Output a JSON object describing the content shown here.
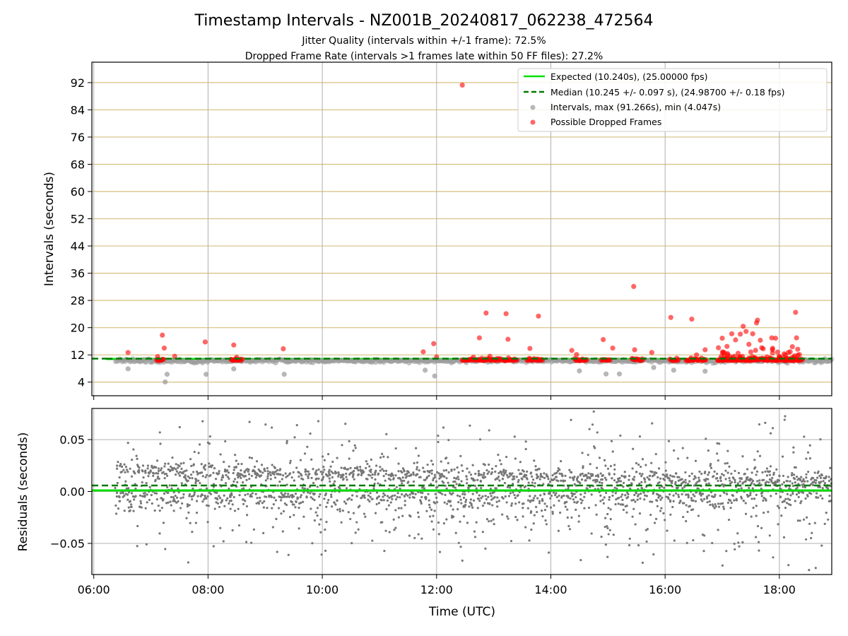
{
  "figure": {
    "title": "Timestamp Intervals - NZ001B_20240817_062238_472564",
    "subtitle_jitter": "Jitter Quality (intervals within +/-1 frame): 72.5%",
    "subtitle_dropped": "Dropped Frame Rate (intervals >1 frames late within 50 FF files): 27.2%"
  },
  "colors": {
    "expected_line": "#00e000",
    "median_line": "#007a00",
    "intervals": "#999999",
    "dropped": "#ff0000",
    "residuals": "#777777",
    "hgrid_top": "#d7bf7f",
    "grid": "#b0b0b0"
  },
  "chart_data": [
    {
      "type": "scatter",
      "panel": "intervals",
      "ylabel": "Intervals (seconds)",
      "x_axis": "time (UTC)",
      "xlim": [
        "05:58",
        "18:55"
      ],
      "ylim": [
        0,
        98
      ],
      "y_ticks": [
        "4",
        "12",
        "20",
        "28",
        "36",
        "44",
        "52",
        "60",
        "68",
        "76",
        "84",
        "92"
      ],
      "legend_position": "top-right",
      "series": [
        {
          "name": "Expected (10.240s), (25.00000 fps)",
          "kind": "line",
          "y": 10.24
        },
        {
          "name": "Median (10.245 +/- 0.097 s), (24.98700 +/- 0.18 fps)",
          "kind": "dashed-line",
          "y": 10.245
        },
        {
          "name": "Intervals, max (91.266s), min (4.047s)",
          "kind": "scatter",
          "x_range": [
            "06:23",
            "18:55"
          ],
          "typical_y": 10.24,
          "spread": 0.05,
          "notable_points": [
            {
              "x": "06:36",
              "y": 7.9
            },
            {
              "x": "07:15",
              "y": 4.05
            },
            {
              "x": "07:17",
              "y": 6.3
            },
            {
              "x": "07:58",
              "y": 6.3
            },
            {
              "x": "08:27",
              "y": 7.9
            },
            {
              "x": "09:20",
              "y": 6.3
            },
            {
              "x": "11:48",
              "y": 7.5
            },
            {
              "x": "11:58",
              "y": 5.8
            },
            {
              "x": "14:30",
              "y": 7.3
            },
            {
              "x": "14:58",
              "y": 6.4
            },
            {
              "x": "15:12",
              "y": 6.4
            },
            {
              "x": "15:48",
              "y": 8.3
            },
            {
              "x": "16:09",
              "y": 7.5
            },
            {
              "x": "16:42",
              "y": 7.2
            }
          ]
        },
        {
          "name": "Possible Dropped Frames",
          "kind": "scatter",
          "points": [
            {
              "x": "06:36",
              "y": 12.7
            },
            {
              "x": "07:07",
              "y": 11.5
            },
            {
              "x": "07:12",
              "y": 17.8
            },
            {
              "x": "07:14",
              "y": 14.0
            },
            {
              "x": "07:25",
              "y": 11.6
            },
            {
              "x": "07:57",
              "y": 15.8
            },
            {
              "x": "08:27",
              "y": 14.9
            },
            {
              "x": "08:30",
              "y": 11.3
            },
            {
              "x": "09:19",
              "y": 13.8
            },
            {
              "x": "11:46",
              "y": 12.9
            },
            {
              "x": "11:57",
              "y": 15.3
            },
            {
              "x": "12:00",
              "y": 11.4
            },
            {
              "x": "12:27",
              "y": 91.27
            },
            {
              "x": "12:45",
              "y": 17.0
            },
            {
              "x": "12:52",
              "y": 24.3
            },
            {
              "x": "12:56",
              "y": 11.6
            },
            {
              "x": "13:13",
              "y": 24.1
            },
            {
              "x": "13:15",
              "y": 16.6
            },
            {
              "x": "13:38",
              "y": 13.9
            },
            {
              "x": "13:47",
              "y": 23.4
            },
            {
              "x": "14:22",
              "y": 13.3
            },
            {
              "x": "14:27",
              "y": 12.1
            },
            {
              "x": "14:55",
              "y": 16.5
            },
            {
              "x": "15:05",
              "y": 14.0
            },
            {
              "x": "15:27",
              "y": 32.1
            },
            {
              "x": "15:28",
              "y": 13.5
            },
            {
              "x": "15:46",
              "y": 12.7
            },
            {
              "x": "16:06",
              "y": 23.0
            },
            {
              "x": "16:28",
              "y": 22.5
            },
            {
              "x": "16:33",
              "y": 12.0
            },
            {
              "x": "16:42",
              "y": 13.5
            },
            {
              "x": "16:56",
              "y": 14.1
            },
            {
              "x": "17:00",
              "y": 16.9
            },
            {
              "x": "17:05",
              "y": 14.5
            },
            {
              "x": "17:10",
              "y": 18.2
            },
            {
              "x": "17:14",
              "y": 16.4
            },
            {
              "x": "17:19",
              "y": 18.1
            },
            {
              "x": "17:22",
              "y": 20.4
            },
            {
              "x": "17:25",
              "y": 18.9
            },
            {
              "x": "17:28",
              "y": 15.1
            },
            {
              "x": "17:32",
              "y": 18.2
            },
            {
              "x": "17:36",
              "y": 21.4
            },
            {
              "x": "17:37",
              "y": 22.2
            },
            {
              "x": "17:40",
              "y": 16.3
            },
            {
              "x": "17:43",
              "y": 13.8
            },
            {
              "x": "17:52",
              "y": 17.0
            },
            {
              "x": "17:56",
              "y": 16.9
            },
            {
              "x": "18:05",
              "y": 12.3
            },
            {
              "x": "18:17",
              "y": 24.5
            },
            {
              "x": "18:18",
              "y": 17.0
            },
            {
              "x": "18:21",
              "y": 12.1
            }
          ]
        }
      ]
    },
    {
      "type": "scatter",
      "panel": "residuals",
      "xlabel": "Time (UTC)",
      "ylabel": "Residuals (seconds)",
      "xlim": [
        "05:58",
        "18:55"
      ],
      "ylim": [
        -0.08,
        0.08
      ],
      "x_ticks": [
        "06:00",
        "08:00",
        "10:00",
        "12:00",
        "14:00",
        "16:00",
        "18:00"
      ],
      "y_ticks": [
        "−0.05",
        "0.00",
        "0.05"
      ],
      "expected_residual": 0.0,
      "median_residual": 0.005,
      "residual_points": {
        "x_range": [
          "06:23",
          "18:55"
        ],
        "y_range": [
          -0.08,
          0.08
        ],
        "spread": "about -0.05 to +0.05, clustered near +0.02 and -0.01"
      }
    }
  ]
}
